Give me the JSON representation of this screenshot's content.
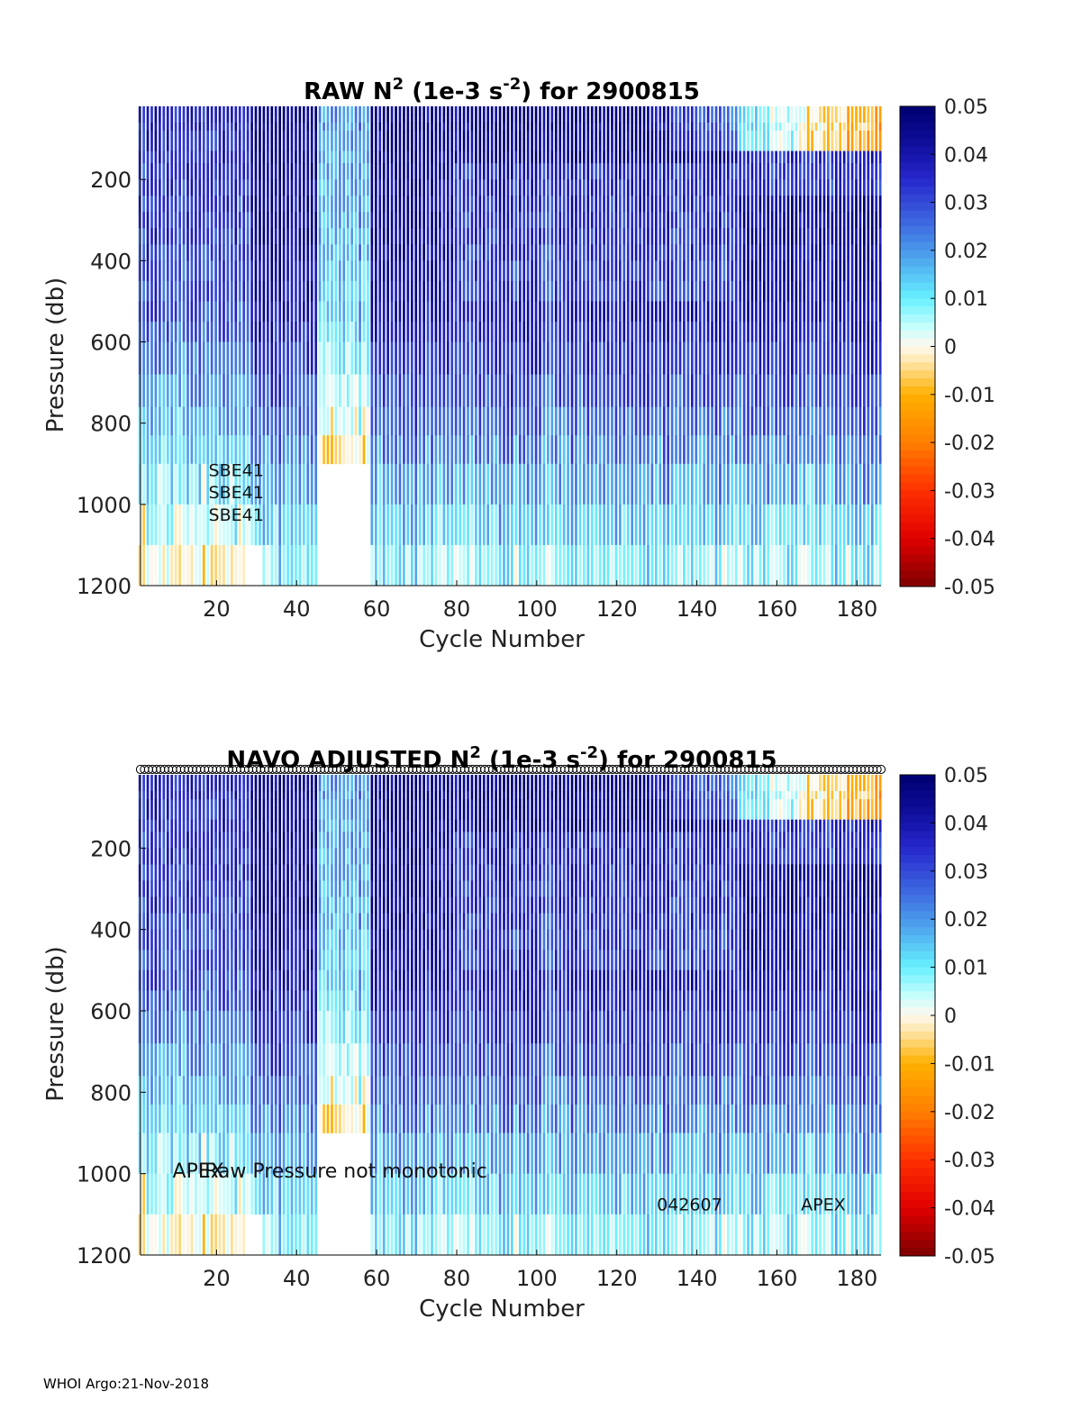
{
  "footer": "WHOI Argo:21-Nov-2018",
  "colors": {
    "background": "#ffffff",
    "axis": "#000000",
    "nodata": "#ffffff"
  },
  "colormap_stops": [
    {
      "v": -0.05,
      "c": "#7f0000"
    },
    {
      "v": -0.04,
      "c": "#e00000"
    },
    {
      "v": -0.03,
      "c": "#ff3000"
    },
    {
      "v": -0.02,
      "c": "#ff7f00"
    },
    {
      "v": -0.01,
      "c": "#ffb000"
    },
    {
      "v": -0.003,
      "c": "#ffe8b0"
    },
    {
      "v": 0.0,
      "c": "#fff8ee"
    },
    {
      "v": 0.004,
      "c": "#c8fffc"
    },
    {
      "v": 0.01,
      "c": "#66f0ff"
    },
    {
      "v": 0.018,
      "c": "#4ea8ee"
    },
    {
      "v": 0.026,
      "c": "#3d66e0"
    },
    {
      "v": 0.035,
      "c": "#2626cc"
    },
    {
      "v": 0.043,
      "c": "#0c0c96"
    },
    {
      "v": 0.05,
      "c": "#000070"
    }
  ],
  "chart_data": [
    {
      "type": "heatmap",
      "title": "RAW N",
      "title_sup": "2",
      "title_unit_pre": " (1e-3 s",
      "title_unit_sup": "-2",
      "title_post": ") for 2900815",
      "xlabel": "Cycle Number",
      "ylabel": "Pressure (db)",
      "xlim": [
        1,
        186
      ],
      "ylim": [
        1200,
        20
      ],
      "xticks": [
        20,
        40,
        60,
        80,
        100,
        120,
        140,
        160,
        180
      ],
      "yticks": [
        200,
        400,
        600,
        800,
        1000,
        1200
      ],
      "colorbar": {
        "range": [
          -0.05,
          0.05
        ],
        "ticks": [
          "0.05",
          "0.04",
          "0.03",
          "0.02",
          "0.01",
          "0",
          "-0.01",
          "-0.02",
          "-0.03",
          "-0.04",
          "-0.05"
        ]
      },
      "annotations": [
        {
          "text": "SBE41",
          "x": 18,
          "y": 930
        },
        {
          "text": "SBE41",
          "x": 18,
          "y": 985
        },
        {
          "text": "SBE41",
          "x": 18,
          "y": 1040
        }
      ],
      "note": "Values are N^2 in 1e-3 s^-2; strongly stratified (~0.04-0.05) above 500 db, weakening to ~0.005-0.015 near 1000-1200 db; cycles ~46-58 missing below ~900 db; slightly negative values near surface for cycles >130."
    },
    {
      "type": "heatmap",
      "title": "NAVO  ADJUSTED N",
      "title_sup": "2",
      "title_unit_pre": " (1e-3 s",
      "title_unit_sup": "-2",
      "title_post": ") for 2900815",
      "xlabel": "Cycle Number",
      "ylabel": "Pressure (db)",
      "xlim": [
        1,
        186
      ],
      "ylim": [
        1200,
        20
      ],
      "xticks": [
        20,
        40,
        60,
        80,
        100,
        120,
        140,
        160,
        180
      ],
      "yticks": [
        200,
        400,
        600,
        800,
        1000,
        1200
      ],
      "colorbar": {
        "range": [
          -0.05,
          0.05
        ],
        "ticks": [
          "0.05",
          "0.04",
          "0.03",
          "0.02",
          "0.01",
          "0",
          "-0.01",
          "-0.02",
          "-0.03",
          "-0.04",
          "-0.05"
        ]
      },
      "qc_markers": {
        "cycles_from": 1,
        "cycles_to": 186,
        "pressure": 0
      },
      "annotations": [
        {
          "text": "APEX",
          "x": 9,
          "y": 1010
        },
        {
          "text": "Raw Pressure not monotonic",
          "x": 17,
          "y": 1010
        },
        {
          "text": "042607",
          "x": 130,
          "y": 1090
        },
        {
          "text": "APEX",
          "x": 166,
          "y": 1090
        }
      ]
    }
  ]
}
